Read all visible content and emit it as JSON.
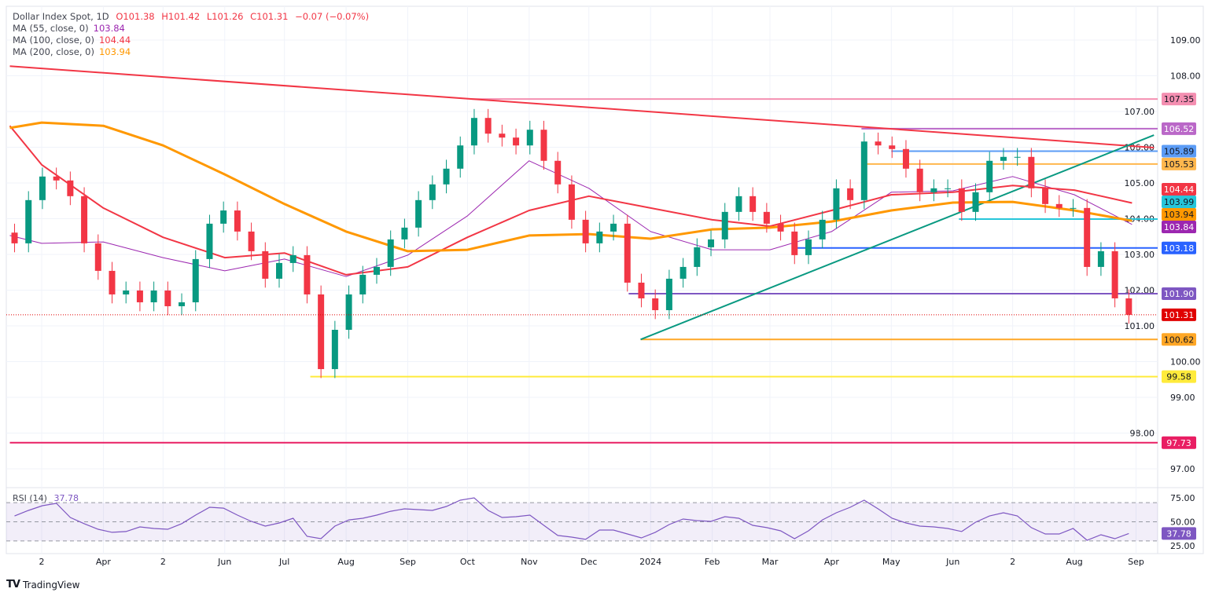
{
  "header": {
    "symbol": "Dollar Index Spot, 1D",
    "open": "O101.38",
    "high": "H101.42",
    "low": "L101.26",
    "close": "C101.31",
    "change": "−0.07 (−0.07%)",
    "ma55_label": "MA (55, close, 0)",
    "ma55_value": "103.84",
    "ma100_label": "MA (100, close, 0)",
    "ma100_value": "104.44",
    "ma200_label": "MA (200, close, 0)",
    "ma200_value": "103.94"
  },
  "rsi_legend": {
    "label": "RSI (14)",
    "value": "37.78"
  },
  "brand": "TradingView",
  "colors": {
    "up": "#089981",
    "down": "#f23645",
    "ma55": "#9c27b0",
    "ma100": "#f23645",
    "ma200": "#ff9800",
    "rsi": "#7e57c2",
    "grid": "#f0f3fa"
  },
  "chart_data": {
    "type": "candlestick",
    "ylim": [
      96.5,
      109.5
    ],
    "y_ticks": [
      "109.00",
      "108.00",
      "107.00",
      "106.00",
      "105.00",
      "104.00",
      "103.00",
      "102.00",
      "101.00",
      "100.00",
      "99.00",
      "98.00",
      "97.00"
    ],
    "x_ticks": [
      {
        "d": "2023-03-01",
        "label": "2"
      },
      {
        "d": "2023-04-01",
        "label": "Apr"
      },
      {
        "d": "2023-05-01",
        "label": "2"
      },
      {
        "d": "2023-06-01",
        "label": "Jun"
      },
      {
        "d": "2023-07-01",
        "label": "Jul"
      },
      {
        "d": "2023-08-01",
        "label": "Aug"
      },
      {
        "d": "2023-09-01",
        "label": "Sep"
      },
      {
        "d": "2023-10-01",
        "label": "Oct"
      },
      {
        "d": "2023-11-01",
        "label": "Nov"
      },
      {
        "d": "2023-12-01",
        "label": "Dec"
      },
      {
        "d": "2024-01-01",
        "label": "2024"
      },
      {
        "d": "2024-02-01",
        "label": "Feb"
      },
      {
        "d": "2024-03-01",
        "label": "Mar"
      },
      {
        "d": "2024-04-01",
        "label": "Apr"
      },
      {
        "d": "2024-05-01",
        "label": "May"
      },
      {
        "d": "2024-06-01",
        "label": "Jun"
      },
      {
        "d": "2024-07-01",
        "label": "2"
      },
      {
        "d": "2024-08-01",
        "label": "Aug"
      },
      {
        "d": "2024-09-01",
        "label": "Sep"
      }
    ],
    "candles": [
      {
        "d": "2023-02-13",
        "c": 103.31,
        "rsi": 56.1
      },
      {
        "d": "2023-02-20",
        "c": 104.52,
        "rsi": 61.9
      },
      {
        "d": "2023-02-27",
        "c": 105.18,
        "rsi": 66.8
      },
      {
        "d": "2023-03-06",
        "c": 105.07,
        "rsi": 69.3
      },
      {
        "d": "2023-03-13",
        "c": 104.63,
        "rsi": 54.5
      },
      {
        "d": "2023-03-20",
        "c": 103.31,
        "rsi": 48.0
      },
      {
        "d": "2023-03-27",
        "c": 102.54,
        "rsi": 42.2
      },
      {
        "d": "2023-04-03",
        "c": 101.88,
        "rsi": 39.0
      },
      {
        "d": "2023-04-10",
        "c": 101.99,
        "rsi": 39.8
      },
      {
        "d": "2023-04-17",
        "c": 101.66,
        "rsi": 44.7
      },
      {
        "d": "2023-04-24",
        "c": 101.99,
        "rsi": 43.0
      },
      {
        "d": "2023-05-01",
        "c": 101.55,
        "rsi": 42.2
      },
      {
        "d": "2023-05-08",
        "c": 101.66,
        "rsi": 48.0
      },
      {
        "d": "2023-05-15",
        "c": 102.87,
        "rsi": 57.0
      },
      {
        "d": "2023-05-22",
        "c": 103.86,
        "rsi": 65.2
      },
      {
        "d": "2023-05-29",
        "c": 104.23,
        "rsi": 64.3
      },
      {
        "d": "2023-06-05",
        "c": 103.64,
        "rsi": 57.0
      },
      {
        "d": "2023-06-12",
        "c": 103.09,
        "rsi": 50.4
      },
      {
        "d": "2023-06-19",
        "c": 102.32,
        "rsi": 45.5
      },
      {
        "d": "2023-06-26",
        "c": 102.76,
        "rsi": 48.8
      },
      {
        "d": "2023-07-03",
        "c": 102.98,
        "rsi": 53.7
      },
      {
        "d": "2023-07-10",
        "c": 101.88,
        "rsi": 34.8
      },
      {
        "d": "2023-07-17",
        "c": 99.79,
        "rsi": 32.4
      },
      {
        "d": "2023-07-24",
        "c": 100.89,
        "rsi": 45.5
      },
      {
        "d": "2023-07-31",
        "c": 101.88,
        "rsi": 52.0
      },
      {
        "d": "2023-08-07",
        "c": 102.43,
        "rsi": 53.7
      },
      {
        "d": "2023-08-14",
        "c": 102.65,
        "rsi": 57.0
      },
      {
        "d": "2023-08-21",
        "c": 103.42,
        "rsi": 61.0
      },
      {
        "d": "2023-08-28",
        "c": 103.75,
        "rsi": 63.5
      },
      {
        "d": "2023-09-04",
        "c": 104.52,
        "rsi": 62.7
      },
      {
        "d": "2023-09-11",
        "c": 104.96,
        "rsi": 61.9
      },
      {
        "d": "2023-09-18",
        "c": 105.4,
        "rsi": 66.0
      },
      {
        "d": "2023-09-25",
        "c": 106.05,
        "rsi": 72.5
      },
      {
        "d": "2023-10-02",
        "c": 106.82,
        "rsi": 75.0
      },
      {
        "d": "2023-10-09",
        "c": 106.38,
        "rsi": 61.9
      },
      {
        "d": "2023-10-16",
        "c": 106.27,
        "rsi": 54.5
      },
      {
        "d": "2023-10-23",
        "c": 106.05,
        "rsi": 55.3
      },
      {
        "d": "2023-10-30",
        "c": 106.49,
        "rsi": 57.0
      },
      {
        "d": "2023-11-06",
        "c": 105.62,
        "rsi": 46.3
      },
      {
        "d": "2023-11-13",
        "c": 104.96,
        "rsi": 35.7
      },
      {
        "d": "2023-11-20",
        "c": 103.97,
        "rsi": 34.0
      },
      {
        "d": "2023-11-27",
        "c": 103.31,
        "rsi": 31.6
      },
      {
        "d": "2023-12-04",
        "c": 103.64,
        "rsi": 41.4
      },
      {
        "d": "2023-12-11",
        "c": 103.86,
        "rsi": 41.4
      },
      {
        "d": "2023-12-18",
        "c": 102.21,
        "rsi": 37.3
      },
      {
        "d": "2023-12-25",
        "c": 101.77,
        "rsi": 33.2
      },
      {
        "d": "2024-01-01",
        "c": 101.44,
        "rsi": 39.0
      },
      {
        "d": "2024-01-08",
        "c": 102.32,
        "rsi": 47.1
      },
      {
        "d": "2024-01-15",
        "c": 102.65,
        "rsi": 52.9
      },
      {
        "d": "2024-01-22",
        "c": 103.2,
        "rsi": 51.2
      },
      {
        "d": "2024-01-29",
        "c": 103.42,
        "rsi": 50.4
      },
      {
        "d": "2024-02-05",
        "c": 104.19,
        "rsi": 55.3
      },
      {
        "d": "2024-02-12",
        "c": 104.63,
        "rsi": 53.7
      },
      {
        "d": "2024-02-19",
        "c": 104.19,
        "rsi": 46.3
      },
      {
        "d": "2024-02-26",
        "c": 103.86,
        "rsi": 43.9
      },
      {
        "d": "2024-03-04",
        "c": 103.64,
        "rsi": 40.6
      },
      {
        "d": "2024-03-11",
        "c": 102.98,
        "rsi": 32.4
      },
      {
        "d": "2024-03-18",
        "c": 103.42,
        "rsi": 40.6
      },
      {
        "d": "2024-03-25",
        "c": 103.97,
        "rsi": 52.0
      },
      {
        "d": "2024-04-01",
        "c": 104.85,
        "rsi": 59.4
      },
      {
        "d": "2024-04-08",
        "c": 104.52,
        "rsi": 65.2
      },
      {
        "d": "2024-04-15",
        "c": 106.16,
        "rsi": 72.5
      },
      {
        "d": "2024-04-22",
        "c": 106.05,
        "rsi": 63.5
      },
      {
        "d": "2024-04-29",
        "c": 105.95,
        "rsi": 53.7
      },
      {
        "d": "2024-05-06",
        "c": 105.4,
        "rsi": 48.8
      },
      {
        "d": "2024-05-13",
        "c": 104.74,
        "rsi": 45.5
      },
      {
        "d": "2024-05-20",
        "c": 104.85,
        "rsi": 44.7
      },
      {
        "d": "2024-05-27",
        "c": 104.85,
        "rsi": 43.0
      },
      {
        "d": "2024-06-03",
        "c": 104.19,
        "rsi": 39.8
      },
      {
        "d": "2024-06-10",
        "c": 104.74,
        "rsi": 49.6
      },
      {
        "d": "2024-06-17",
        "c": 105.62,
        "rsi": 56.1
      },
      {
        "d": "2024-06-24",
        "c": 105.73,
        "rsi": 59.4
      },
      {
        "d": "2024-07-01",
        "c": 105.73,
        "rsi": 56.1
      },
      {
        "d": "2024-07-08",
        "c": 104.85,
        "rsi": 43.9
      },
      {
        "d": "2024-07-15",
        "c": 104.41,
        "rsi": 37.3
      },
      {
        "d": "2024-07-22",
        "c": 104.3,
        "rsi": 37.3
      },
      {
        "d": "2024-07-29",
        "c": 104.3,
        "rsi": 43.0
      },
      {
        "d": "2024-08-05",
        "c": 102.65,
        "rsi": 30.7
      },
      {
        "d": "2024-08-12",
        "c": 103.09,
        "rsi": 36.5
      },
      {
        "d": "2024-08-19",
        "c": 101.77,
        "rsi": 32.4
      },
      {
        "d": "2024-08-26",
        "c": 101.31,
        "rsi": 37.78
      }
    ],
    "moving_averages": [
      {
        "name": "MA (55, close, 0)",
        "color": "#9c27b0",
        "points": [
          [
            "2023-02-13",
            103.53
          ],
          [
            "2023-03-01",
            103.31
          ],
          [
            "2023-04-01",
            103.35
          ],
          [
            "2023-05-01",
            102.91
          ],
          [
            "2023-06-01",
            102.54
          ],
          [
            "2023-07-01",
            102.87
          ],
          [
            "2023-08-01",
            102.38
          ],
          [
            "2023-09-01",
            102.98
          ],
          [
            "2023-10-01",
            104.08
          ],
          [
            "2023-11-01",
            105.62
          ],
          [
            "2023-12-01",
            104.85
          ],
          [
            "2024-01-01",
            103.64
          ],
          [
            "2024-02-01",
            103.13
          ],
          [
            "2024-03-01",
            103.13
          ],
          [
            "2024-04-01",
            103.64
          ],
          [
            "2024-05-01",
            104.74
          ],
          [
            "2024-06-01",
            104.78
          ],
          [
            "2024-07-01",
            105.18
          ],
          [
            "2024-08-01",
            104.67
          ],
          [
            "2024-08-30",
            103.84
          ]
        ]
      },
      {
        "name": "MA (100, close, 0)",
        "color": "#f23645",
        "points": [
          [
            "2023-02-13",
            106.6
          ],
          [
            "2023-03-01",
            105.51
          ],
          [
            "2023-04-01",
            104.3
          ],
          [
            "2023-05-01",
            103.48
          ],
          [
            "2023-06-01",
            102.91
          ],
          [
            "2023-07-01",
            103.04
          ],
          [
            "2023-08-01",
            102.43
          ],
          [
            "2023-09-01",
            102.65
          ],
          [
            "2023-10-01",
            103.48
          ],
          [
            "2023-11-01",
            104.23
          ],
          [
            "2023-12-01",
            104.63
          ],
          [
            "2024-01-01",
            104.3
          ],
          [
            "2024-02-01",
            103.97
          ],
          [
            "2024-03-01",
            103.79
          ],
          [
            "2024-04-01",
            104.23
          ],
          [
            "2024-05-01",
            104.67
          ],
          [
            "2024-06-01",
            104.74
          ],
          [
            "2024-07-01",
            104.93
          ],
          [
            "2024-08-01",
            104.8
          ],
          [
            "2024-08-30",
            104.44
          ]
        ]
      },
      {
        "name": "MA (200, close, 0)",
        "color": "#ff9800",
        "points": [
          [
            "2023-02-13",
            106.54
          ],
          [
            "2023-03-01",
            106.69
          ],
          [
            "2023-04-01",
            106.6
          ],
          [
            "2023-05-01",
            106.05
          ],
          [
            "2023-06-01",
            105.24
          ],
          [
            "2023-07-01",
            104.41
          ],
          [
            "2023-08-01",
            103.64
          ],
          [
            "2023-09-01",
            103.09
          ],
          [
            "2023-10-01",
            103.13
          ],
          [
            "2023-11-01",
            103.53
          ],
          [
            "2023-12-01",
            103.57
          ],
          [
            "2024-01-01",
            103.44
          ],
          [
            "2024-02-01",
            103.7
          ],
          [
            "2024-03-01",
            103.75
          ],
          [
            "2024-04-01",
            103.92
          ],
          [
            "2024-05-01",
            104.23
          ],
          [
            "2024-06-01",
            104.45
          ],
          [
            "2024-07-01",
            104.47
          ],
          [
            "2024-08-01",
            104.23
          ],
          [
            "2024-08-30",
            103.94
          ]
        ]
      }
    ],
    "levels": [
      {
        "value": "107.35",
        "from": "2023-10-03",
        "color": "#f48fb1",
        "text": "#131722"
      },
      {
        "value": "106.52",
        "from": "2024-04-16",
        "color": "#ba68c8",
        "text": "#ffffff"
      },
      {
        "value": "105.89",
        "from": "2024-05-01",
        "color": "#5b9cf6",
        "text": "#131722"
      },
      {
        "value": "105.53",
        "from": "2024-04-16",
        "color": "#ffb74d",
        "text": "#131722"
      },
      {
        "value": "103.99",
        "from": "2024-06-04",
        "color": "#26c6da",
        "text": "#131722"
      },
      {
        "value": "103.18",
        "from": "2024-03-13",
        "color": "#2962ff",
        "text": "#ffffff"
      },
      {
        "value": "101.90",
        "from": "2023-12-21",
        "color": "#7e57c2",
        "text": "#ffffff"
      },
      {
        "value": "100.62",
        "from": "2023-12-27",
        "color": "#ffa726",
        "text": "#131722"
      },
      {
        "value": "99.58",
        "from": "2023-07-14",
        "color": "#ffeb3b",
        "text": "#131722"
      },
      {
        "value": "97.73",
        "from": "2023-02-13",
        "color": "#e91e63",
        "text": "#ffffff"
      }
    ],
    "ma_labels": [
      {
        "value": "104.44",
        "color": "#f23645",
        "text": "#ffffff"
      },
      {
        "value": "103.99",
        "color": "#26c6da",
        "text": "#131722"
      },
      {
        "value": "103.94",
        "color": "#ff9800",
        "text": "#131722"
      },
      {
        "value": "103.84",
        "color": "#9c27b0",
        "text": "#ffffff"
      }
    ],
    "last_price": {
      "value": "101.31",
      "color": "#e00000"
    },
    "trendlines": [
      {
        "color": "#f23645",
        "from": [
          "2023-02-13",
          108.27
        ],
        "to": [
          "2024-09-10",
          105.99
        ]
      },
      {
        "color": "#089981",
        "from": [
          "2023-12-27",
          100.62
        ],
        "to": [
          "2024-09-10",
          106.34
        ]
      }
    ],
    "rsi": {
      "ylim": [
        15,
        85
      ],
      "ticks": [
        "75.00",
        "50.00",
        "25.00"
      ],
      "last": "37.78",
      "color": "#7e57c2"
    }
  }
}
